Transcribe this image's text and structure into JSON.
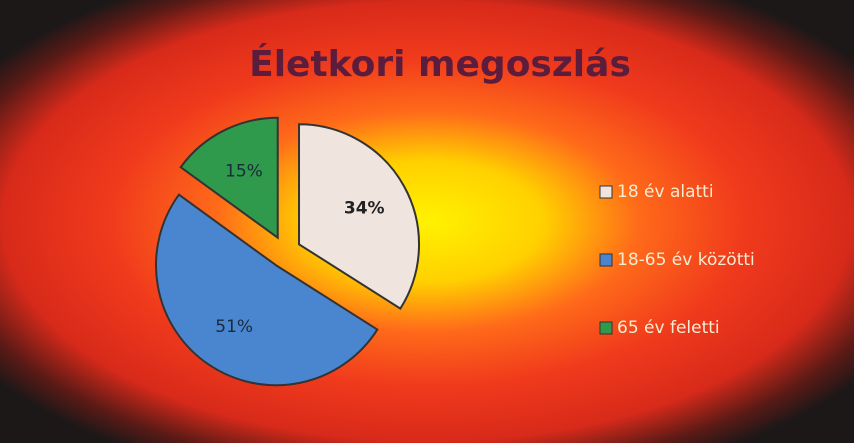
{
  "chart_data": {
    "type": "pie",
    "title": "Életkori megoszlás",
    "categories": [
      "18 év alatti",
      "18-65 év közötti",
      "65 év feletti"
    ],
    "values": [
      34,
      51,
      15
    ],
    "value_labels": [
      "34%",
      "51%",
      "15%"
    ],
    "colors": [
      "#efe4de",
      "#4a86d0",
      "#2f9a4c"
    ],
    "legend": "right"
  }
}
